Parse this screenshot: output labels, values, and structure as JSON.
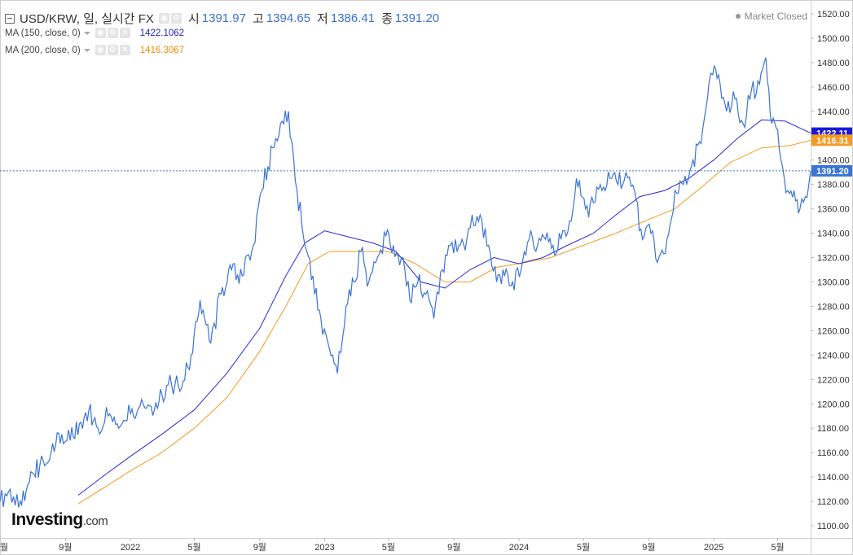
{
  "header": {
    "symbol": "USD/KRW, 일, 실시간 FX",
    "open_label": "시",
    "open_value": "1391.97",
    "high_label": "고",
    "high_value": "1394.65",
    "low_label": "저",
    "low_value": "1386.41",
    "close_label": "종",
    "close_value": "1391.20"
  },
  "indicators": [
    {
      "name": "MA (150, close, 0)",
      "value": "1422.1062",
      "color": "#2929d6"
    },
    {
      "name": "MA (200, close, 0)",
      "value": "1416.3067",
      "color": "#f59a23"
    }
  ],
  "market_status": "Market Closed",
  "brand": {
    "name": "Investing",
    "suffix": ".com"
  },
  "price_badges": {
    "ma150": "1422.11",
    "ma200": "1416.31",
    "last": "1391.20"
  },
  "colors": {
    "price_line": "#3a74d4",
    "ma150": "#2929d6",
    "ma200": "#f59a23",
    "last_badge": "#3a74d4",
    "ma150_badge": "#1a1ad6",
    "ma200_badge": "#f59a23"
  },
  "chart_data": {
    "type": "line",
    "title": "USD/KRW",
    "ylim": [
      1090,
      1530
    ],
    "xlim": [
      "2021-05-01",
      "2025-07-02"
    ],
    "y_ticks": [
      "1100.00",
      "1120.00",
      "1140.00",
      "1160.00",
      "1180.00",
      "1200.00",
      "1220.00",
      "1240.00",
      "1260.00",
      "1280.00",
      "1300.00",
      "1320.00",
      "1340.00",
      "1360.00",
      "1380.00",
      "1400.00",
      "1420.00",
      "1440.00",
      "1460.00",
      "1480.00",
      "1500.00",
      "1520.00"
    ],
    "x_ticks": [
      {
        "label": "월",
        "date": "2021-05-01"
      },
      {
        "label": "9월",
        "date": "2021-09-01"
      },
      {
        "label": "2022",
        "date": "2022-01-01"
      },
      {
        "label": "5월",
        "date": "2022-05-01"
      },
      {
        "label": "9월",
        "date": "2022-09-01"
      },
      {
        "label": "2023",
        "date": "2023-01-01"
      },
      {
        "label": "5월",
        "date": "2023-05-01"
      },
      {
        "label": "9월",
        "date": "2023-09-01"
      },
      {
        "label": "2024",
        "date": "2024-01-01"
      },
      {
        "label": "5월",
        "date": "2024-05-01"
      },
      {
        "label": "9월",
        "date": "2024-09-01"
      },
      {
        "label": "2025",
        "date": "2025-01-01"
      },
      {
        "label": "5월",
        "date": "2025-05-01"
      }
    ],
    "series": [
      {
        "name": "USD/KRW",
        "points": [
          [
            "2021-05-01",
            1120
          ],
          [
            "2021-05-20",
            1130
          ],
          [
            "2021-06-05",
            1115
          ],
          [
            "2021-06-25",
            1135
          ],
          [
            "2021-07-15",
            1150
          ],
          [
            "2021-08-05",
            1160
          ],
          [
            "2021-08-25",
            1175
          ],
          [
            "2021-09-10",
            1170
          ],
          [
            "2021-09-30",
            1185
          ],
          [
            "2021-10-15",
            1195
          ],
          [
            "2021-11-01",
            1180
          ],
          [
            "2021-11-20",
            1190
          ],
          [
            "2021-12-10",
            1180
          ],
          [
            "2022-01-01",
            1192
          ],
          [
            "2022-01-25",
            1200
          ],
          [
            "2022-02-15",
            1195
          ],
          [
            "2022-03-10",
            1215
          ],
          [
            "2022-04-01",
            1215
          ],
          [
            "2022-04-25",
            1240
          ],
          [
            "2022-05-12",
            1285
          ],
          [
            "2022-06-01",
            1250
          ],
          [
            "2022-06-20",
            1290
          ],
          [
            "2022-07-10",
            1310
          ],
          [
            "2022-07-30",
            1305
          ],
          [
            "2022-08-20",
            1330
          ],
          [
            "2022-09-05",
            1375
          ],
          [
            "2022-09-25",
            1410
          ],
          [
            "2022-10-10",
            1430
          ],
          [
            "2022-10-25",
            1440
          ],
          [
            "2022-11-10",
            1375
          ],
          [
            "2022-11-25",
            1330
          ],
          [
            "2022-12-10",
            1305
          ],
          [
            "2022-12-25",
            1270
          ],
          [
            "2023-01-10",
            1245
          ],
          [
            "2023-01-25",
            1225
          ],
          [
            "2023-02-10",
            1280
          ],
          [
            "2023-02-25",
            1300
          ],
          [
            "2023-03-10",
            1325
          ],
          [
            "2023-03-25",
            1300
          ],
          [
            "2023-04-10",
            1320
          ],
          [
            "2023-04-26",
            1338
          ],
          [
            "2023-05-10",
            1330
          ],
          [
            "2023-05-25",
            1320
          ],
          [
            "2023-06-10",
            1285
          ],
          [
            "2023-06-25",
            1300
          ],
          [
            "2023-07-10",
            1290
          ],
          [
            "2023-07-25",
            1270
          ],
          [
            "2023-08-10",
            1310
          ],
          [
            "2023-08-25",
            1330
          ],
          [
            "2023-09-10",
            1330
          ],
          [
            "2023-09-25",
            1335
          ],
          [
            "2023-10-05",
            1355
          ],
          [
            "2023-10-20",
            1355
          ],
          [
            "2023-11-05",
            1330
          ],
          [
            "2023-11-20",
            1300
          ],
          [
            "2023-12-05",
            1305
          ],
          [
            "2023-12-20",
            1300
          ],
          [
            "2024-01-05",
            1310
          ],
          [
            "2024-01-20",
            1335
          ],
          [
            "2024-02-05",
            1330
          ],
          [
            "2024-02-20",
            1335
          ],
          [
            "2024-03-05",
            1330
          ],
          [
            "2024-03-20",
            1335
          ],
          [
            "2024-04-05",
            1350
          ],
          [
            "2024-04-18",
            1385
          ],
          [
            "2024-05-05",
            1360
          ],
          [
            "2024-05-20",
            1365
          ],
          [
            "2024-06-05",
            1375
          ],
          [
            "2024-06-20",
            1385
          ],
          [
            "2024-07-05",
            1380
          ],
          [
            "2024-07-20",
            1390
          ],
          [
            "2024-08-05",
            1375
          ],
          [
            "2024-08-20",
            1335
          ],
          [
            "2024-09-05",
            1340
          ],
          [
            "2024-09-20",
            1320
          ],
          [
            "2024-10-05",
            1335
          ],
          [
            "2024-10-20",
            1375
          ],
          [
            "2024-11-05",
            1380
          ],
          [
            "2024-11-20",
            1395
          ],
          [
            "2024-12-05",
            1415
          ],
          [
            "2024-12-20",
            1450
          ],
          [
            "2024-12-30",
            1470
          ],
          [
            "2025-01-10",
            1470
          ],
          [
            "2025-01-25",
            1440
          ],
          [
            "2025-02-10",
            1450
          ],
          [
            "2025-02-25",
            1430
          ],
          [
            "2025-03-10",
            1450
          ],
          [
            "2025-03-25",
            1465
          ],
          [
            "2025-04-09",
            1484
          ],
          [
            "2025-04-20",
            1430
          ],
          [
            "2025-05-01",
            1425
          ],
          [
            "2025-05-10",
            1395
          ],
          [
            "2025-05-20",
            1375
          ],
          [
            "2025-06-01",
            1375
          ],
          [
            "2025-06-12",
            1360
          ],
          [
            "2025-06-22",
            1370
          ],
          [
            "2025-07-02",
            1391.2
          ]
        ]
      },
      {
        "name": "MA (150, close, 0)",
        "points": [
          [
            "2021-09-25",
            1125
          ],
          [
            "2021-11-15",
            1142
          ],
          [
            "2022-01-01",
            1157
          ],
          [
            "2022-03-01",
            1175
          ],
          [
            "2022-05-01",
            1195
          ],
          [
            "2022-07-01",
            1225
          ],
          [
            "2022-09-01",
            1262
          ],
          [
            "2022-10-20",
            1305
          ],
          [
            "2022-11-25",
            1332
          ],
          [
            "2023-01-01",
            1342
          ],
          [
            "2023-02-15",
            1337
          ],
          [
            "2023-04-01",
            1332
          ],
          [
            "2023-05-15",
            1325
          ],
          [
            "2023-07-01",
            1300
          ],
          [
            "2023-08-15",
            1295
          ],
          [
            "2023-10-01",
            1310
          ],
          [
            "2023-11-15",
            1320
          ],
          [
            "2024-01-01",
            1315
          ],
          [
            "2024-02-15",
            1320
          ],
          [
            "2024-04-01",
            1330
          ],
          [
            "2024-05-20",
            1340
          ],
          [
            "2024-07-01",
            1355
          ],
          [
            "2024-08-15",
            1370
          ],
          [
            "2024-10-01",
            1375
          ],
          [
            "2024-11-15",
            1385
          ],
          [
            "2025-01-01",
            1400
          ],
          [
            "2025-02-15",
            1418
          ],
          [
            "2025-04-01",
            1433
          ],
          [
            "2025-05-15",
            1432
          ],
          [
            "2025-07-02",
            1422.11
          ]
        ]
      },
      {
        "name": "MA (200, close, 0)",
        "points": [
          [
            "2021-09-25",
            1118
          ],
          [
            "2021-11-15",
            1132
          ],
          [
            "2022-01-01",
            1145
          ],
          [
            "2022-03-01",
            1160
          ],
          [
            "2022-05-01",
            1180
          ],
          [
            "2022-07-01",
            1205
          ],
          [
            "2022-09-01",
            1243
          ],
          [
            "2022-10-20",
            1280
          ],
          [
            "2022-12-01",
            1315
          ],
          [
            "2023-01-10",
            1325
          ],
          [
            "2023-03-01",
            1325
          ],
          [
            "2023-05-01",
            1325
          ],
          [
            "2023-06-20",
            1315
          ],
          [
            "2023-08-15",
            1300
          ],
          [
            "2023-10-01",
            1300
          ],
          [
            "2023-11-20",
            1312
          ],
          [
            "2024-01-01",
            1315
          ],
          [
            "2024-03-01",
            1320
          ],
          [
            "2024-05-01",
            1330
          ],
          [
            "2024-07-01",
            1340
          ],
          [
            "2024-08-25",
            1350
          ],
          [
            "2024-10-20",
            1360
          ],
          [
            "2024-12-15",
            1380
          ],
          [
            "2025-02-01",
            1398
          ],
          [
            "2025-04-01",
            1410
          ],
          [
            "2025-05-25",
            1412
          ],
          [
            "2025-07-02",
            1416.31
          ]
        ]
      }
    ],
    "last_value_line": 1391.2
  }
}
